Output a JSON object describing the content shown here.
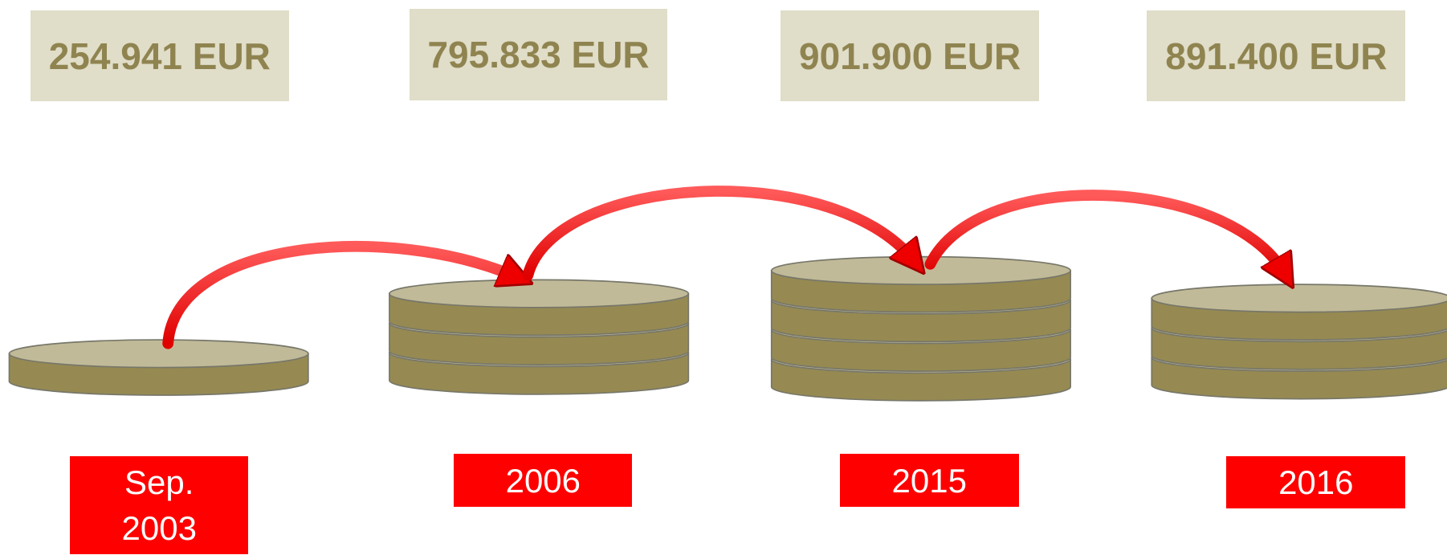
{
  "items": [
    {
      "amount": "254.941 EUR",
      "label": "Sep. 2003"
    },
    {
      "amount": "795.833 EUR",
      "label": "2006"
    },
    {
      "amount": "901.900 EUR",
      "label": "2015"
    },
    {
      "amount": "891.400 EUR",
      "label": "2016"
    }
  ]
}
